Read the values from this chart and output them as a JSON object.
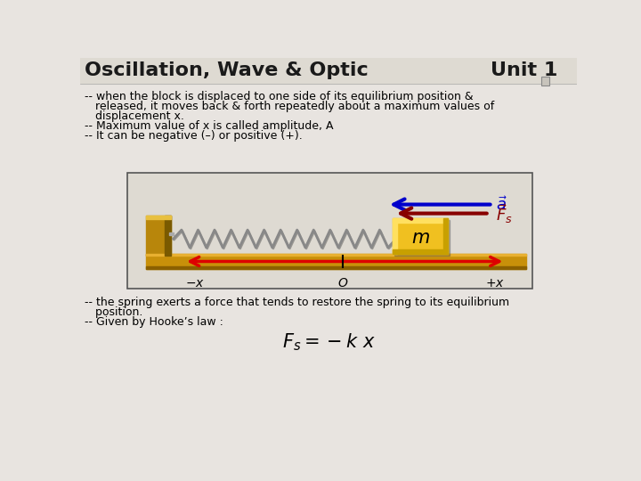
{
  "title_left": "Oscillation, Wave & Optic",
  "title_right": "Unit 1",
  "bg_color": "#e8e4e0",
  "text_color": "#000000",
  "body_text": [
    "-- when the block is displaced to one side of its equilibrium position &",
    "   released, it moves back & forth repeatedly about a maximum values of",
    "   displacement x.",
    "-- Maximum value of x is called amplitude, A",
    "-- It can be negative (–) or positive (+)."
  ],
  "bottom_text": [
    "-- the spring exerts a force that tends to restore the spring to its equilibrium",
    "   position.",
    "-- Given by Hooke’s law :"
  ],
  "wall_color": "#b8860b",
  "wall_dark": "#7a5a00",
  "block_color": "#f0c020",
  "block_dark": "#c8a000",
  "track_color": "#c8900a",
  "track_dark": "#8B6000",
  "spring_color": "#888888",
  "spring_shadow": "#444444",
  "arrow_red": "#dd0000",
  "arrow_blue": "#0000cc",
  "arrow_darkred": "#880000",
  "img_border": "#555555",
  "img_bg": "#dedad2",
  "formula": "$F_s = -k\\ x$"
}
